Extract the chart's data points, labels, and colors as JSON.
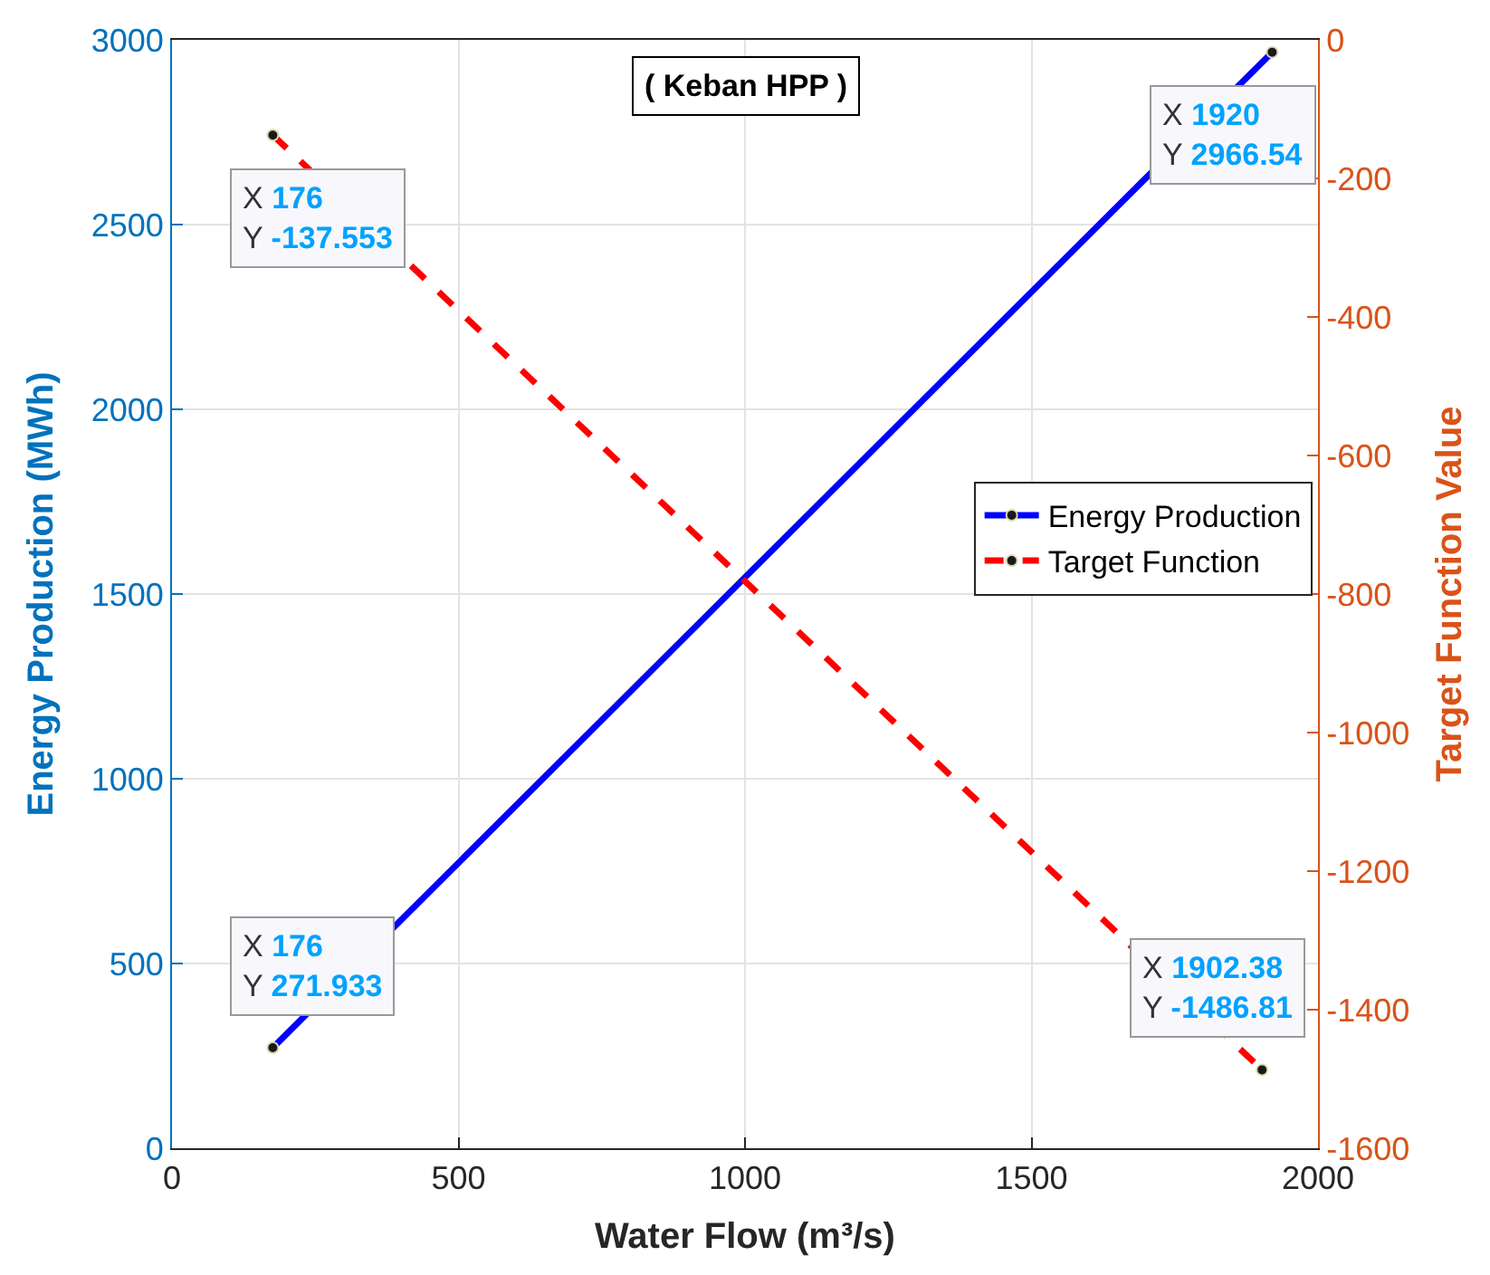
{
  "chart_data": {
    "type": "line",
    "title": "( Keban HPP )",
    "xlabel": "Water Flow (m³/s)",
    "ylabel": "Energy Production (MWh)",
    "y2label": "Target Function Value",
    "series": [
      {
        "name": "Energy Production",
        "color": "#0000ff",
        "x": [
          176,
          1920
        ],
        "values": [
          271.933,
          2966.54
        ],
        "line_style": "solid"
      },
      {
        "name": "Target Function",
        "color": "#ff0000",
        "x": [
          176,
          1902.38
        ],
        "values": [
          -137.553,
          -1486.81
        ],
        "line_style": "dashed",
        "axis": "y2"
      }
    ],
    "annotations": [
      "X 176\nY -137.553",
      {
        "text": "X 1920\nY 2966.54",
        "x": 1920,
        "y": 2966.54
      },
      {
        "text": "X 176\nY 271.933",
        "x": 176,
        "y": 271.933
      },
      "X 1902.38\nY -1486.81"
    ],
    "xlim": [
      0,
      2000
    ],
    "xticks": [
      0,
      500,
      1000,
      1500,
      2000
    ],
    "ylim": [
      0,
      3000
    ],
    "yticks": [
      0,
      500,
      1000,
      1500,
      2000,
      2500,
      3000
    ],
    "y2lim": [
      -1600,
      0
    ],
    "y2ticks": [
      -1600,
      -1400,
      -1200,
      -1000,
      -800,
      -600,
      -400,
      -200,
      0
    ],
    "grid": true,
    "legend": "right",
    "marker": "circle"
  }
}
